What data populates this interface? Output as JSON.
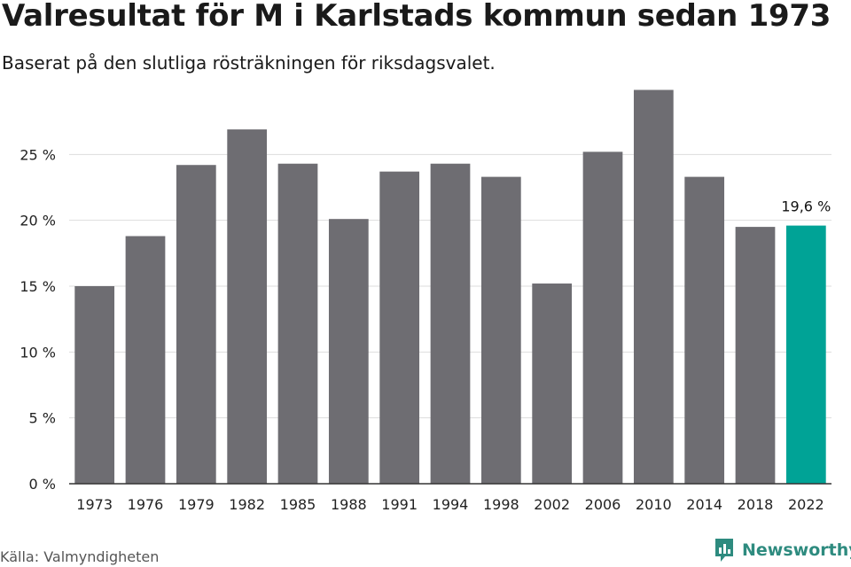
{
  "header": {
    "title": "Valresultat för M i Karlstads kommun sedan 1973",
    "subtitle": "Baserat på den slutliga rösträkningen för riksdagsvalet."
  },
  "footer": {
    "source": "Källa: Valmyndigheten",
    "brand": "Newsworthy",
    "brand_icon": "newsworthy-logo-icon"
  },
  "colors": {
    "bar": "#6e6d72",
    "highlight": "#00a396",
    "grid": "#dddddd",
    "axis": "#333333",
    "brand": "#2e8b7f"
  },
  "chart_data": {
    "type": "bar",
    "title": "Valresultat för M i Karlstads kommun sedan 1973",
    "subtitle": "Baserat på den slutliga rösträkningen för riksdagsvalet.",
    "xlabel": "",
    "ylabel": "",
    "categories": [
      "1973",
      "1976",
      "1979",
      "1982",
      "1985",
      "1988",
      "1991",
      "1994",
      "1998",
      "2002",
      "2006",
      "2010",
      "2014",
      "2018",
      "2022"
    ],
    "values": [
      15.0,
      18.8,
      24.2,
      26.9,
      24.3,
      20.1,
      23.7,
      24.3,
      23.3,
      15.2,
      25.2,
      29.9,
      23.3,
      19.5,
      19.6
    ],
    "ylim": [
      0,
      30
    ],
    "yticks": [
      0,
      5,
      10,
      15,
      20,
      25
    ],
    "ytick_labels": [
      "0 %",
      "5 %",
      "10 %",
      "15 %",
      "20 %",
      "25 %"
    ],
    "grid": true,
    "legend": "none",
    "highlight_index": 14,
    "data_labels": [
      {
        "index": 14,
        "text": "19,6 %"
      }
    ]
  }
}
